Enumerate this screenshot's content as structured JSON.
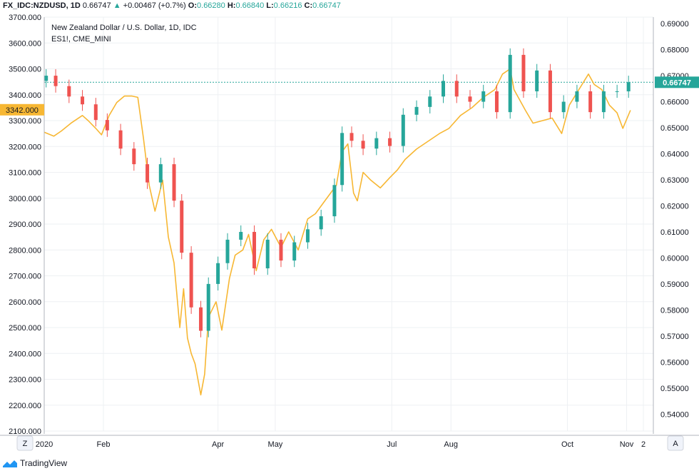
{
  "header": {
    "symbol": "FX_IDC:NZDUSD, 1D",
    "last": "0.66747",
    "change_arrow": "▲",
    "change": "+0.00467 (+0.7%)",
    "o_label": "O:",
    "o_value": "0.66280",
    "h_label": "H:",
    "h_value": "0.66840",
    "l_label": "L:",
    "l_value": "0.66216",
    "c_label": "C:",
    "c_value": "0.66747"
  },
  "legend": {
    "title": "New Zealand Dollar / U.S. Dollar, 1D, IDC",
    "overlay": "ES1!, CME_MINI"
  },
  "controls": {
    "left_button": "Z",
    "right_button": "A"
  },
  "footer": {
    "brand": "TradingView"
  },
  "colors": {
    "up": "#26a69a",
    "down": "#ef5350",
    "overlay": "#f7b733",
    "grid": "#eef0f3",
    "axis_text": "#131722"
  },
  "chart_data": [
    {
      "type": "line",
      "name": "ES1!, CME_MINI",
      "axis": "left",
      "ylim": [
        2100,
        3700
      ],
      "ytick_labels": [
        "3700.000",
        "3600.000",
        "3500.000",
        "3400.000",
        "3300.000",
        "3200.000",
        "3100.000",
        "3000.000",
        "2900.000",
        "2800.000",
        "2700.000",
        "2600.000",
        "2500.000",
        "2400.000",
        "2300.000",
        "2200.000",
        "2100.000"
      ],
      "current_label": "3342.000",
      "x": [
        "2020-01-01",
        "2020-01-06",
        "2020-01-10",
        "2020-01-15",
        "2020-01-21",
        "2020-01-24",
        "2020-01-28",
        "2020-01-31",
        "2020-02-04",
        "2020-02-08",
        "2020-02-12",
        "2020-02-16",
        "2020-02-19",
        "2020-02-22",
        "2020-02-25",
        "2020-02-28",
        "2020-03-03",
        "2020-03-06",
        "2020-03-09",
        "2020-03-12",
        "2020-03-14",
        "2020-03-16",
        "2020-03-18",
        "2020-03-20",
        "2020-03-23",
        "2020-03-25",
        "2020-03-27",
        "2020-03-31",
        "2020-04-03",
        "2020-04-07",
        "2020-04-10",
        "2020-04-14",
        "2020-04-17",
        "2020-04-21",
        "2020-04-25",
        "2020-04-29",
        "2020-05-04",
        "2020-05-08",
        "2020-05-13",
        "2020-05-18",
        "2020-05-22",
        "2020-05-27",
        "2020-06-02",
        "2020-06-05",
        "2020-06-08",
        "2020-06-11",
        "2020-06-13",
        "2020-06-16",
        "2020-06-20",
        "2020-06-25",
        "2020-06-30",
        "2020-07-04",
        "2020-07-08",
        "2020-07-14",
        "2020-07-20",
        "2020-07-26",
        "2020-07-31",
        "2020-08-06",
        "2020-08-12",
        "2020-08-18",
        "2020-08-24",
        "2020-08-28",
        "2020-09-01",
        "2020-09-03",
        "2020-09-06",
        "2020-09-09",
        "2020-09-13",
        "2020-09-18",
        "2020-09-23",
        "2020-09-28",
        "2020-10-02",
        "2020-10-07",
        "2020-10-12",
        "2020-10-15",
        "2020-10-19",
        "2020-10-23",
        "2020-10-27",
        "2020-10-30",
        "2020-11-03"
      ],
      "values": [
        3255,
        3240,
        3260,
        3290,
        3320,
        3300,
        3270,
        3245,
        3320,
        3370,
        3395,
        3395,
        3390,
        3230,
        3050,
        2950,
        3070,
        2850,
        2750,
        2500,
        2650,
        2460,
        2400,
        2360,
        2240,
        2320,
        2540,
        2600,
        2490,
        2690,
        2780,
        2800,
        2860,
        2720,
        2840,
        2880,
        2810,
        2870,
        2800,
        2920,
        2940,
        2990,
        3050,
        3180,
        3210,
        3020,
        2990,
        3100,
        3070,
        3040,
        3080,
        3110,
        3150,
        3190,
        3220,
        3250,
        3270,
        3320,
        3350,
        3390,
        3420,
        3480,
        3500,
        3420,
        3380,
        3340,
        3290,
        3300,
        3310,
        3250,
        3360,
        3420,
        3480,
        3440,
        3420,
        3360,
        3330,
        3270,
        3340
      ]
    },
    {
      "type": "candlestick",
      "name": "New Zealand Dollar / U.S. Dollar, 1D, IDC",
      "axis": "right",
      "ylim": [
        0.5335,
        0.6925
      ],
      "ytick_labels": [
        "0.69000",
        "0.68000",
        "0.67000",
        "0.66000",
        "0.65000",
        "0.64000",
        "0.63000",
        "0.62000",
        "0.61000",
        "0.60000",
        "0.59000",
        "0.58000",
        "0.57000",
        "0.56000",
        "0.55000",
        "0.54000"
      ],
      "current_label": "0.66747",
      "xtick_labels": [
        "2020",
        "Feb",
        "Apr",
        "May",
        "Jul",
        "Aug",
        "Oct",
        "Nov",
        "2"
      ],
      "x": [
        "2020-01-02",
        "2020-01-07",
        "2020-01-14",
        "2020-01-21",
        "2020-01-28",
        "2020-02-03",
        "2020-02-10",
        "2020-02-17",
        "2020-02-24",
        "2020-03-02",
        "2020-03-09",
        "2020-03-13",
        "2020-03-18",
        "2020-03-23",
        "2020-03-27",
        "2020-04-01",
        "2020-04-06",
        "2020-04-13",
        "2020-04-20",
        "2020-04-27",
        "2020-05-04",
        "2020-05-11",
        "2020-05-18",
        "2020-05-25",
        "2020-06-01",
        "2020-06-05",
        "2020-06-10",
        "2020-06-16",
        "2020-06-23",
        "2020-06-30",
        "2020-07-07",
        "2020-07-14",
        "2020-07-21",
        "2020-07-28",
        "2020-08-04",
        "2020-08-11",
        "2020-08-18",
        "2020-08-25",
        "2020-09-01",
        "2020-09-08",
        "2020-09-15",
        "2020-09-22",
        "2020-09-29",
        "2020-10-06",
        "2020-10-13",
        "2020-10-20",
        "2020-10-27",
        "2020-11-02"
      ],
      "values": [
        0.67,
        0.666,
        0.662,
        0.659,
        0.653,
        0.649,
        0.642,
        0.636,
        0.629,
        0.636,
        0.622,
        0.602,
        0.581,
        0.572,
        0.59,
        0.598,
        0.607,
        0.61,
        0.596,
        0.607,
        0.599,
        0.606,
        0.611,
        0.616,
        0.628,
        0.648,
        0.645,
        0.642,
        0.646,
        0.643,
        0.655,
        0.658,
        0.662,
        0.668,
        0.662,
        0.66,
        0.664,
        0.656,
        0.678,
        0.664,
        0.672,
        0.656,
        0.66,
        0.664,
        0.656,
        0.664,
        0.664,
        0.6675
      ]
    }
  ]
}
